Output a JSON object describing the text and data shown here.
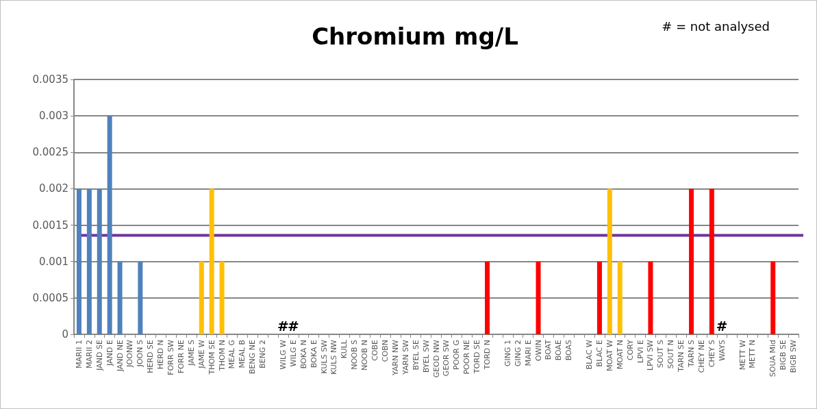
{
  "chart_data": {
    "type": "bar",
    "title": "Chromium mg/L",
    "annotations": [
      "# = not analysed",
      "#",
      "#",
      "#"
    ],
    "categories": [
      "MARII 1",
      "MARII 2",
      "JAND SE",
      "JAND E",
      "JAND NE",
      "JOONW",
      "JOON S",
      "HERD SE",
      "HERD N",
      "FORR SW",
      "FORR NE",
      "JAME S",
      "JAME W",
      "THOM SE",
      "THOM N",
      "MEAL G",
      "MEAL B",
      "BENG NE",
      "BENG 2",
      null,
      "WILG W",
      "WILG E",
      "BOKA N",
      "BOKA E",
      "KULS SW",
      "KULS NW",
      "KULL",
      "NOOB S",
      "NOOB N",
      "COBE",
      "COBN",
      "YARN NW",
      "YARN SW",
      "BYEL SE",
      "BYEL SW",
      "GEOD NW",
      "GEOR SW",
      "POOR G",
      "POOR NE",
      "TORD SE",
      "TORD N",
      null,
      "GING 1",
      "GING 2",
      "MARI E",
      "OWIN",
      "BOAT",
      "BOAE",
      "BOAS",
      null,
      "BLAC W",
      "BLAC E",
      "MOAT W",
      "MOAT N",
      "CORY",
      "LPVI E",
      "LPVI SW",
      "SOUT S",
      "SOUT N",
      "TARN SE",
      "TARN S",
      "CHEY NE",
      "CHEY S",
      "WAYS",
      null,
      "METT W",
      "METT N",
      null,
      "SOUA Mid",
      "BIGB SE",
      "BIGB SW"
    ],
    "values": [
      0.002,
      0.002,
      0.002,
      0.003,
      0.001,
      0,
      0.001,
      0,
      0,
      0,
      0,
      0,
      0.001,
      0.002,
      0.001,
      0,
      0,
      0,
      0,
      null,
      null,
      null,
      0,
      0,
      0,
      0,
      0,
      0,
      0,
      0,
      0,
      0,
      0,
      0,
      0,
      0,
      0,
      0,
      0,
      0,
      0.001,
      null,
      0,
      0,
      0,
      0.001,
      0,
      0,
      0,
      null,
      0,
      0.001,
      0.002,
      0.001,
      0,
      0,
      0.001,
      0,
      0,
      0,
      0.002,
      0,
      0.002,
      null,
      null,
      0,
      0,
      null,
      0.001,
      0,
      0
    ],
    "colors": [
      "#4f81bd",
      "#4f81bd",
      "#4f81bd",
      "#4f81bd",
      "#4f81bd",
      "#4f81bd",
      "#4f81bd",
      "#4f81bd",
      "#4f81bd",
      "#4f81bd",
      "#4f81bd",
      "#ffc000",
      "#ffc000",
      "#ffc000",
      "#ffc000",
      "#ffc000",
      "#ffc000",
      "#ffc000",
      "#ffc000",
      "#ff0000",
      "#ff0000",
      "#ff0000",
      "#ff0000",
      "#ff0000",
      "#ff0000",
      "#ff0000",
      "#ff0000",
      "#ff0000",
      "#ff0000",
      "#ff0000",
      "#ff0000",
      "#ff0000",
      "#ff0000",
      "#ff0000",
      "#ff0000",
      "#ff0000",
      "#ff0000",
      "#ff0000",
      "#ff0000",
      "#ff0000",
      "#ff0000",
      "#ff0000",
      "#ff0000",
      "#ff0000",
      "#ff0000",
      "#ff0000",
      "#ff0000",
      "#ff0000",
      "#ff0000",
      "#ff0000",
      "#ff0000",
      "#ff0000",
      "#ffc000",
      "#ffc000",
      "#ff0000",
      "#ff0000",
      "#ff0000",
      "#ff0000",
      "#ff0000",
      "#ff0000",
      "#ff0000",
      "#ff0000",
      "#ff0000",
      "#ff0000",
      "#ff0000",
      "#ff0000",
      "#ff0000",
      "#ff0000",
      "#ff0000",
      "#ff0000",
      "#ff0000"
    ],
    "ylim": [
      0,
      0.0035
    ],
    "yticks": [
      0,
      0.0005,
      0.001,
      0.0015,
      0.002,
      0.0025,
      0.003,
      0.0035
    ],
    "ref_lines": [
      {
        "axis": "y",
        "value": 0.00136,
        "color": "#7030a0"
      }
    ],
    "grid": "y"
  }
}
